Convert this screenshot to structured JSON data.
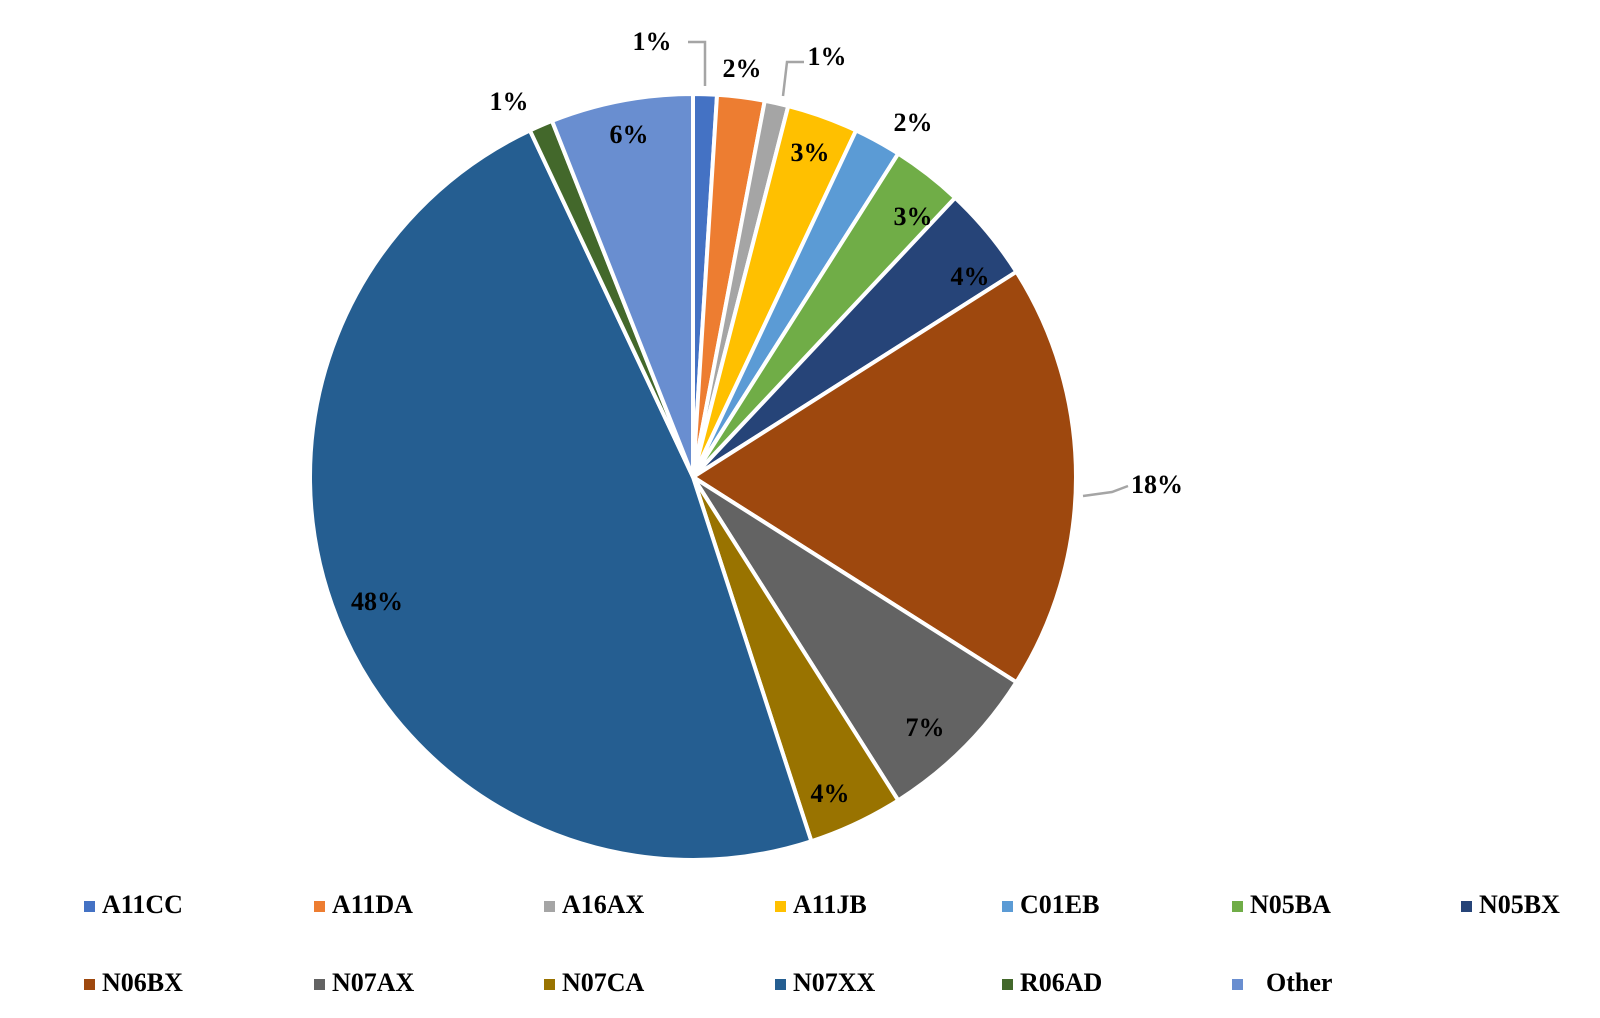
{
  "chart_data": {
    "type": "pie",
    "title": "",
    "series": [
      {
        "label": "A11CC",
        "value": 1,
        "value_label": "1%",
        "color": "#4472C4"
      },
      {
        "label": "A11DA",
        "value": 2,
        "value_label": "2%",
        "color": "#ED7D31"
      },
      {
        "label": "A16AX",
        "value": 1,
        "value_label": "1%",
        "color": "#A5A5A5"
      },
      {
        "label": "A11JB",
        "value": 3,
        "value_label": "3%",
        "color": "#FFC000"
      },
      {
        "label": "C01EB",
        "value": 2,
        "value_label": "2%",
        "color": "#5B9BD5"
      },
      {
        "label": "N05BA",
        "value": 3,
        "value_label": "3%",
        "color": "#70AD47"
      },
      {
        "label": "N05BX",
        "value": 4,
        "value_label": "4%",
        "color": "#264478"
      },
      {
        "label": "N06BX",
        "value": 18,
        "value_label": "18%",
        "color": "#9E480E"
      },
      {
        "label": "N07AX",
        "value": 7,
        "value_label": "7%",
        "color": "#636363"
      },
      {
        "label": "N07CA",
        "value": 4,
        "value_label": "4%",
        "color": "#997300"
      },
      {
        "label": "N07XX",
        "value": 48,
        "value_label": "48%",
        "color": "#255E91"
      },
      {
        "label": "R06AD",
        "value": 1,
        "value_label": "1%",
        "color": "#43682B"
      },
      {
        "label": "Other",
        "value": 6,
        "value_label": "6%",
        "color": "#698ED0"
      }
    ],
    "legend_position": "bottom"
  }
}
